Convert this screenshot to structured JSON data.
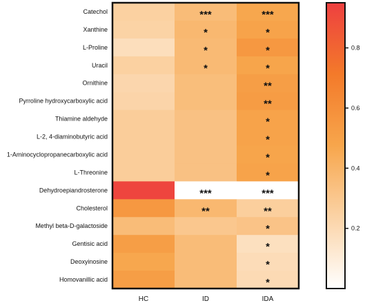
{
  "chart_data": {
    "type": "heatmap",
    "rows": [
      "Catechol",
      "Xanthine",
      "L-Proline",
      "Uracil",
      "Ornithine",
      "Pyrroline hydroxycarboxylic acid",
      "Thiamine aldehyde",
      "L-2, 4-diaminobutyric acid",
      "1-Aminocyclopropanecarboxylic acid",
      "L-Threonine",
      "Dehydroepiandrosterone",
      "Cholesterol",
      "Methyl beta-D-galactoside",
      "Gentisic acid",
      "Deoxyinosine",
      "Homovanillic acid"
    ],
    "columns": [
      "HC",
      "ID",
      "IDA"
    ],
    "values": [
      [
        0.25,
        0.36,
        0.47
      ],
      [
        0.24,
        0.38,
        0.49
      ],
      [
        0.18,
        0.37,
        0.55
      ],
      [
        0.25,
        0.37,
        0.48
      ],
      [
        0.22,
        0.35,
        0.52
      ],
      [
        0.23,
        0.35,
        0.53
      ],
      [
        0.27,
        0.33,
        0.49
      ],
      [
        0.27,
        0.33,
        0.49
      ],
      [
        0.27,
        0.33,
        0.48
      ],
      [
        0.27,
        0.33,
        0.49
      ],
      [
        0.93,
        0.0,
        0.0
      ],
      [
        0.55,
        0.38,
        0.26
      ],
      [
        0.36,
        0.3,
        0.32
      ],
      [
        0.52,
        0.36,
        0.17
      ],
      [
        0.47,
        0.36,
        0.19
      ],
      [
        0.52,
        0.36,
        0.2
      ]
    ],
    "significance": [
      [
        "",
        "***",
        "***"
      ],
      [
        "",
        "*",
        "*"
      ],
      [
        "",
        "*",
        "*"
      ],
      [
        "",
        "*",
        "*"
      ],
      [
        "",
        "",
        "**"
      ],
      [
        "",
        "",
        "**"
      ],
      [
        "",
        "",
        "*"
      ],
      [
        "",
        "",
        "*"
      ],
      [
        "",
        "",
        "*"
      ],
      [
        "",
        "",
        "*"
      ],
      [
        "",
        "***",
        "***"
      ],
      [
        "",
        "**",
        "**"
      ],
      [
        "",
        "",
        "*"
      ],
      [
        "",
        "",
        "*"
      ],
      [
        "",
        "",
        "*"
      ],
      [
        "",
        "",
        "*"
      ]
    ],
    "colorbar": {
      "min": 0,
      "max": 0.95,
      "ticks": [
        0.2,
        0.4,
        0.6,
        0.8
      ],
      "tick_labels": [
        "0.2",
        "0.4",
        "0.6",
        "0.8"
      ],
      "colors": [
        "#ffffff",
        "#fbd3a6",
        "#f7a64c",
        "#f37a2a",
        "#ee4040"
      ]
    }
  }
}
